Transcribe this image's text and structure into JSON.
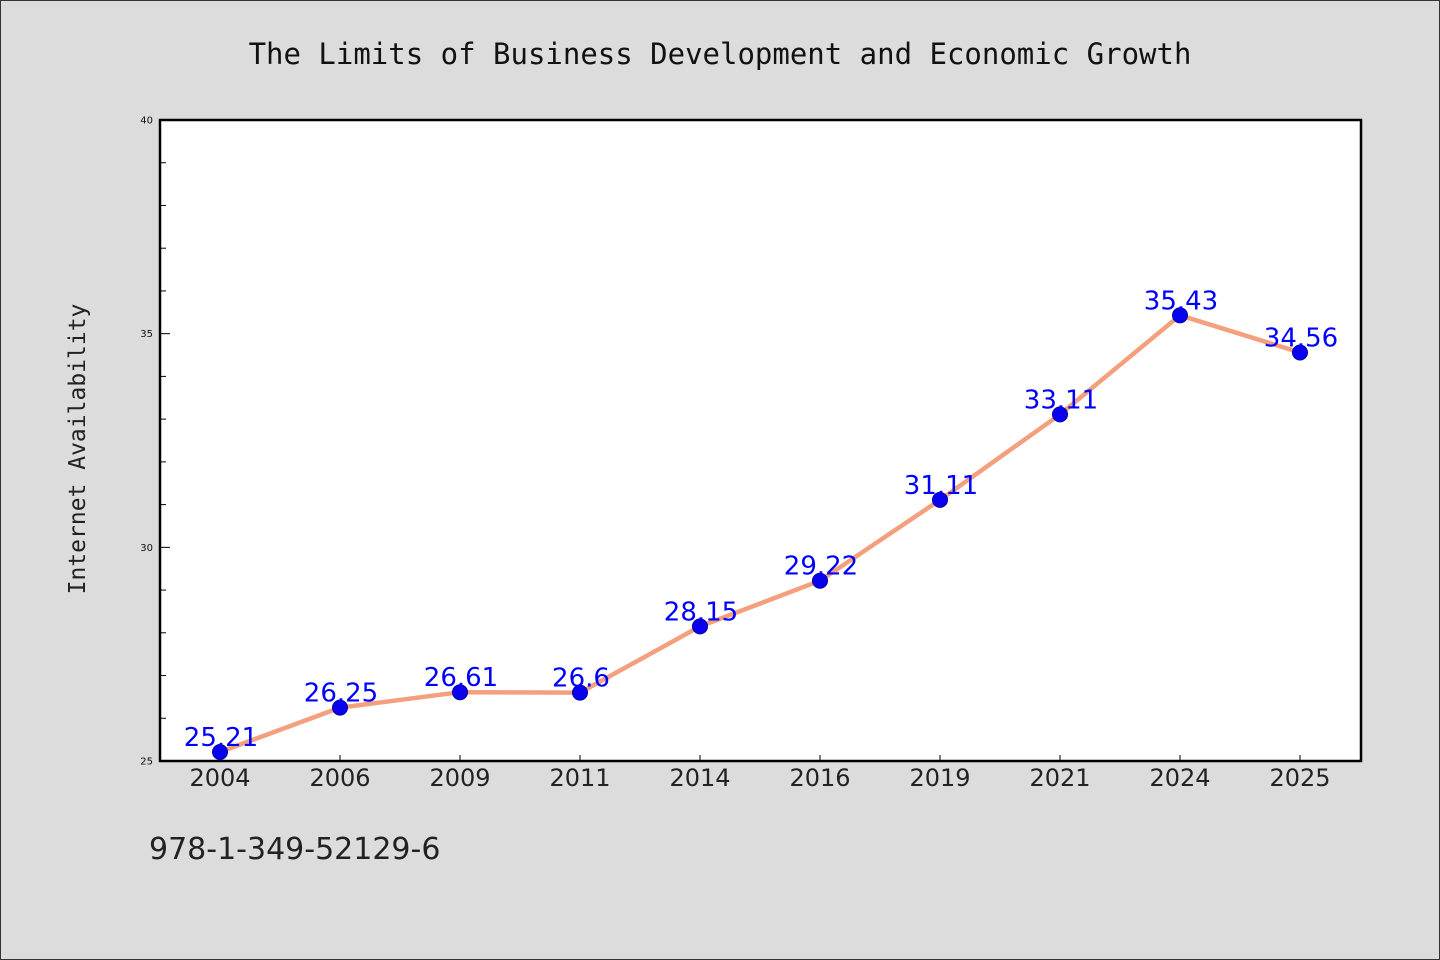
{
  "chart_data": {
    "type": "line",
    "title": "The Limits of Business Development and Economic Growth",
    "xlabel": "",
    "ylabel": "Internet Availability",
    "categories": [
      "2004",
      "2006",
      "2009",
      "2011",
      "2014",
      "2016",
      "2019",
      "2021",
      "2024",
      "2025"
    ],
    "series": [
      {
        "values": [
          25.21,
          26.25,
          26.61,
          26.6,
          28.15,
          29.22,
          31.11,
          33.11,
          35.43,
          34.56
        ],
        "labels": [
          "25.21",
          "26.25",
          "26.61",
          "26.6",
          "28.15",
          "29.22",
          "31.11",
          "33.11",
          "35.43",
          "34.56"
        ]
      }
    ],
    "ylim": [
      25,
      40
    ],
    "yticks": [
      "25",
      "30",
      "35",
      "40"
    ],
    "grid": false,
    "legend": "none",
    "colors": {
      "line": "#f4a07e",
      "marker": "#0a00f0",
      "label": "#0000ff",
      "background": "#dcdcdc",
      "plot_background": "#ffffff"
    }
  },
  "footnote": "978-1-349-52129-6"
}
